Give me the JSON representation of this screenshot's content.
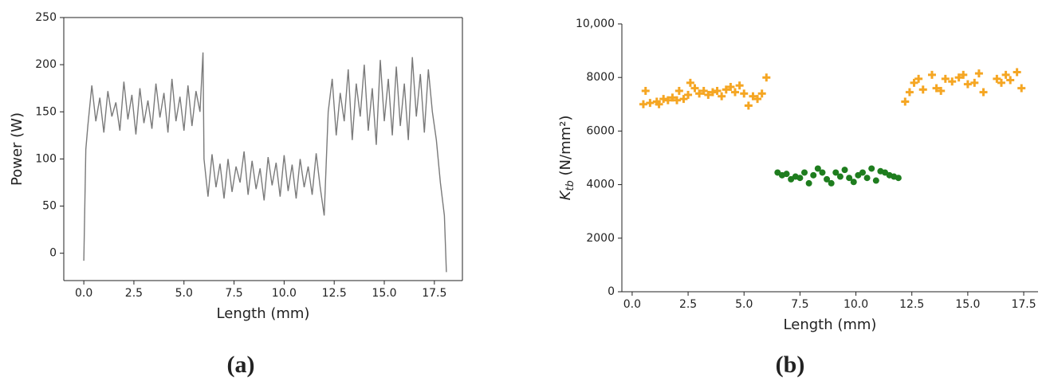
{
  "chart_data": [
    {
      "type": "line",
      "caption": "(a)",
      "x_label": "Length (mm)",
      "y_label": "Power (W)",
      "xlim": [
        -1,
        18.9
      ],
      "ylim": [
        -29,
        250
      ],
      "xticks": [
        {
          "value": 0,
          "label": "0.0"
        },
        2.5,
        {
          "value": 5,
          "label": "5.0"
        },
        7.5,
        {
          "value": 10,
          "label": "10.0"
        },
        12.5,
        {
          "value": 15,
          "label": "15.0"
        },
        17.5
      ],
      "yticks": [
        0,
        50,
        100,
        150,
        200,
        250
      ],
      "box": true,
      "x": [
        0,
        0.1,
        0.2,
        0.4,
        0.6,
        0.8,
        1.0,
        1.2,
        1.4,
        1.6,
        1.8,
        2.0,
        2.2,
        2.4,
        2.6,
        2.8,
        3.0,
        3.2,
        3.4,
        3.6,
        3.8,
        4.0,
        4.2,
        4.4,
        4.6,
        4.8,
        5.0,
        5.2,
        5.4,
        5.6,
        5.8,
        5.95,
        6.0,
        6.2,
        6.4,
        6.6,
        6.8,
        7.0,
        7.2,
        7.4,
        7.6,
        7.8,
        8.0,
        8.2,
        8.4,
        8.6,
        8.8,
        9.0,
        9.2,
        9.4,
        9.6,
        9.8,
        10.0,
        10.2,
        10.4,
        10.6,
        10.8,
        11.0,
        11.2,
        11.4,
        11.6,
        11.8,
        12.0,
        12.2,
        12.4,
        12.6,
        12.8,
        13.0,
        13.2,
        13.4,
        13.6,
        13.8,
        14.0,
        14.2,
        14.4,
        14.6,
        14.8,
        15.0,
        15.2,
        15.4,
        15.6,
        15.8,
        16.0,
        16.2,
        16.4,
        16.6,
        16.8,
        17.0,
        17.2,
        17.4,
        17.6,
        17.8,
        18.0,
        18.1
      ],
      "series": [
        {
          "color": "#7a7a7a",
          "values": [
            -8,
            110,
            135,
            178,
            140,
            165,
            128,
            172,
            145,
            160,
            130,
            182,
            142,
            168,
            126,
            175,
            138,
            162,
            132,
            180,
            144,
            170,
            128,
            185,
            140,
            166,
            130,
            178,
            135,
            172,
            150,
            213,
            100,
            60,
            105,
            70,
            95,
            58,
            100,
            65,
            92,
            75,
            108,
            62,
            98,
            68,
            90,
            56,
            102,
            72,
            96,
            60,
            104,
            66,
            94,
            58,
            100,
            70,
            92,
            62,
            106,
            70,
            40,
            150,
            185,
            125,
            170,
            140,
            195,
            120,
            180,
            145,
            200,
            130,
            175,
            115,
            205,
            140,
            185,
            125,
            198,
            135,
            180,
            120,
            208,
            145,
            190,
            128,
            195,
            150,
            120,
            75,
            40,
            -20
          ]
        }
      ]
    },
    {
      "type": "scatter",
      "caption": "(b)",
      "x_label": "Length (mm)",
      "y_label": "K",
      "y_label_sub": "tb",
      "y_label_unit": " (N/mm²)",
      "xlim": [
        -0.46,
        18.14
      ],
      "ylim": [
        0,
        10000
      ],
      "xticks": [
        {
          "value": 0,
          "label": "0.0"
        },
        2.5,
        {
          "value": 5,
          "label": "5.0"
        },
        7.5,
        {
          "value": 10,
          "label": "10.0"
        },
        12.5,
        {
          "value": 15,
          "label": "15.0"
        },
        17.5
      ],
      "yticks": [
        0,
        2000,
        4000,
        6000,
        8000,
        {
          "value": 10000,
          "label": "10,000"
        }
      ],
      "box": false,
      "series": [
        {
          "color": "#f5a623",
          "marker": "plus",
          "x": [
            0.5,
            0.6,
            0.8,
            1.1,
            1.2,
            1.4,
            1.6,
            1.8,
            2.0,
            2.1,
            2.3,
            2.5,
            2.6,
            2.8,
            3.0,
            3.2,
            3.4,
            3.6,
            3.8,
            4.0,
            4.2,
            4.4,
            4.6,
            4.8,
            5.0,
            5.2,
            5.4,
            5.6,
            5.8,
            6.0,
            12.2,
            12.4,
            12.6,
            12.8,
            13.0,
            13.4,
            13.6,
            13.8,
            14.0,
            14.3,
            14.6,
            14.8,
            15.0,
            15.3,
            15.5,
            15.7,
            16.3,
            16.5,
            16.7,
            16.9,
            17.2,
            17.4
          ],
          "values": [
            7000,
            7500,
            7050,
            7100,
            7000,
            7200,
            7150,
            7250,
            7150,
            7500,
            7200,
            7350,
            7800,
            7600,
            7400,
            7500,
            7350,
            7450,
            7500,
            7300,
            7550,
            7650,
            7450,
            7700,
            7400,
            6950,
            7300,
            7200,
            7400,
            8000,
            7100,
            7450,
            7800,
            7950,
            7550,
            8100,
            7600,
            7500,
            7950,
            7850,
            8000,
            8100,
            7750,
            7800,
            8150,
            7450,
            7950,
            7800,
            8100,
            7900,
            8200,
            7600
          ]
        },
        {
          "color": "#1e7d1e",
          "marker": "circle",
          "x": [
            6.5,
            6.7,
            6.9,
            7.1,
            7.3,
            7.5,
            7.7,
            7.9,
            8.1,
            8.3,
            8.5,
            8.7,
            8.9,
            9.1,
            9.3,
            9.5,
            9.7,
            9.9,
            10.1,
            10.3,
            10.5,
            10.7,
            10.9,
            11.1,
            11.3,
            11.5,
            11.7,
            11.9
          ],
          "values": [
            4450,
            4350,
            4400,
            4200,
            4300,
            4250,
            4450,
            4050,
            4350,
            4600,
            4450,
            4200,
            4050,
            4450,
            4300,
            4550,
            4250,
            4100,
            4350,
            4450,
            4250,
            4600,
            4150,
            4500,
            4450,
            4350,
            4300,
            4250
          ]
        }
      ]
    }
  ]
}
